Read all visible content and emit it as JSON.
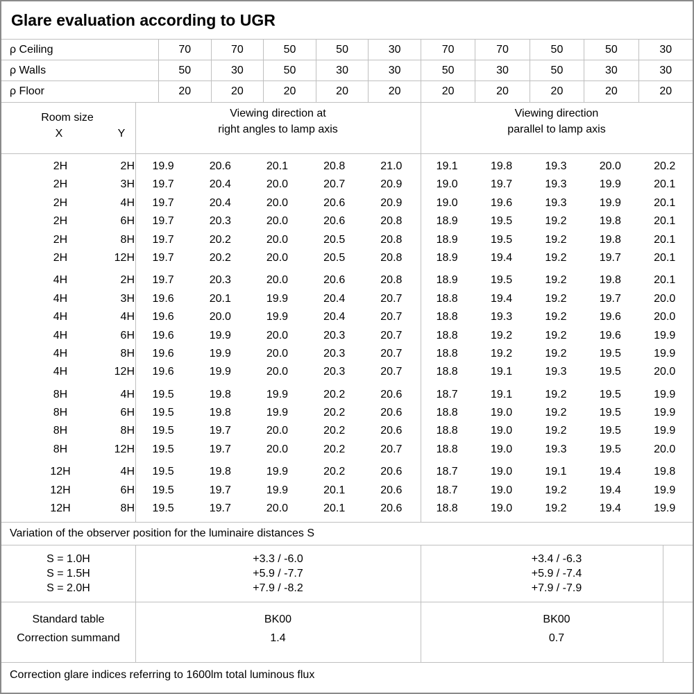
{
  "title": "Glare evaluation according to UGR",
  "reflectance": {
    "ceiling_label": "ρ Ceiling",
    "walls_label": "ρ Walls",
    "floor_label": "ρ Floor",
    "ceiling": [
      "70",
      "70",
      "50",
      "50",
      "30",
      "70",
      "70",
      "50",
      "50",
      "30"
    ],
    "walls": [
      "50",
      "30",
      "50",
      "30",
      "30",
      "50",
      "30",
      "50",
      "30",
      "30"
    ],
    "floor": [
      "20",
      "20",
      "20",
      "20",
      "20",
      "20",
      "20",
      "20",
      "20",
      "20"
    ]
  },
  "header": {
    "room_size_label": "Room size",
    "x_label": "X",
    "y_label": "Y",
    "left_group_line1": "Viewing direction at",
    "left_group_line2": "right angles to lamp axis",
    "right_group_line1": "Viewing direction",
    "right_group_line2": "parallel to lamp axis"
  },
  "blocks": [
    {
      "rows": [
        {
          "x": "2H",
          "y": "2H",
          "right_angle": [
            "19.9",
            "20.6",
            "20.1",
            "20.8",
            "21.0"
          ],
          "parallel": [
            "19.1",
            "19.8",
            "19.3",
            "20.0",
            "20.2"
          ]
        },
        {
          "x": "2H",
          "y": "3H",
          "right_angle": [
            "19.7",
            "20.4",
            "20.0",
            "20.7",
            "20.9"
          ],
          "parallel": [
            "19.0",
            "19.7",
            "19.3",
            "19.9",
            "20.1"
          ]
        },
        {
          "x": "2H",
          "y": "4H",
          "right_angle": [
            "19.7",
            "20.4",
            "20.0",
            "20.6",
            "20.9"
          ],
          "parallel": [
            "19.0",
            "19.6",
            "19.3",
            "19.9",
            "20.1"
          ]
        },
        {
          "x": "2H",
          "y": "6H",
          "right_angle": [
            "19.7",
            "20.3",
            "20.0",
            "20.6",
            "20.8"
          ],
          "parallel": [
            "18.9",
            "19.5",
            "19.2",
            "19.8",
            "20.1"
          ]
        },
        {
          "x": "2H",
          "y": "8H",
          "right_angle": [
            "19.7",
            "20.2",
            "20.0",
            "20.5",
            "20.8"
          ],
          "parallel": [
            "18.9",
            "19.5",
            "19.2",
            "19.8",
            "20.1"
          ]
        },
        {
          "x": "2H",
          "y": "12H",
          "right_angle": [
            "19.7",
            "20.2",
            "20.0",
            "20.5",
            "20.8"
          ],
          "parallel": [
            "18.9",
            "19.4",
            "19.2",
            "19.7",
            "20.1"
          ]
        }
      ]
    },
    {
      "rows": [
        {
          "x": "4H",
          "y": "2H",
          "right_angle": [
            "19.7",
            "20.3",
            "20.0",
            "20.6",
            "20.8"
          ],
          "parallel": [
            "18.9",
            "19.5",
            "19.2",
            "19.8",
            "20.1"
          ]
        },
        {
          "x": "4H",
          "y": "3H",
          "right_angle": [
            "19.6",
            "20.1",
            "19.9",
            "20.4",
            "20.7"
          ],
          "parallel": [
            "18.8",
            "19.4",
            "19.2",
            "19.7",
            "20.0"
          ]
        },
        {
          "x": "4H",
          "y": "4H",
          "right_angle": [
            "19.6",
            "20.0",
            "19.9",
            "20.4",
            "20.7"
          ],
          "parallel": [
            "18.8",
            "19.3",
            "19.2",
            "19.6",
            "20.0"
          ]
        },
        {
          "x": "4H",
          "y": "6H",
          "right_angle": [
            "19.6",
            "19.9",
            "20.0",
            "20.3",
            "20.7"
          ],
          "parallel": [
            "18.8",
            "19.2",
            "19.2",
            "19.6",
            "19.9"
          ]
        },
        {
          "x": "4H",
          "y": "8H",
          "right_angle": [
            "19.6",
            "19.9",
            "20.0",
            "20.3",
            "20.7"
          ],
          "parallel": [
            "18.8",
            "19.2",
            "19.2",
            "19.5",
            "19.9"
          ]
        },
        {
          "x": "4H",
          "y": "12H",
          "right_angle": [
            "19.6",
            "19.9",
            "20.0",
            "20.3",
            "20.7"
          ],
          "parallel": [
            "18.8",
            "19.1",
            "19.3",
            "19.5",
            "20.0"
          ]
        }
      ]
    },
    {
      "rows": [
        {
          "x": "8H",
          "y": "4H",
          "right_angle": [
            "19.5",
            "19.8",
            "19.9",
            "20.2",
            "20.6"
          ],
          "parallel": [
            "18.7",
            "19.1",
            "19.2",
            "19.5",
            "19.9"
          ]
        },
        {
          "x": "8H",
          "y": "6H",
          "right_angle": [
            "19.5",
            "19.8",
            "19.9",
            "20.2",
            "20.6"
          ],
          "parallel": [
            "18.8",
            "19.0",
            "19.2",
            "19.5",
            "19.9"
          ]
        },
        {
          "x": "8H",
          "y": "8H",
          "right_angle": [
            "19.5",
            "19.7",
            "20.0",
            "20.2",
            "20.6"
          ],
          "parallel": [
            "18.8",
            "19.0",
            "19.2",
            "19.5",
            "19.9"
          ]
        },
        {
          "x": "8H",
          "y": "12H",
          "right_angle": [
            "19.5",
            "19.7",
            "20.0",
            "20.2",
            "20.7"
          ],
          "parallel": [
            "18.8",
            "19.0",
            "19.3",
            "19.5",
            "20.0"
          ]
        }
      ]
    },
    {
      "rows": [
        {
          "x": "12H",
          "y": "4H",
          "right_angle": [
            "19.5",
            "19.8",
            "19.9",
            "20.2",
            "20.6"
          ],
          "parallel": [
            "18.7",
            "19.0",
            "19.1",
            "19.4",
            "19.8"
          ]
        },
        {
          "x": "12H",
          "y": "6H",
          "right_angle": [
            "19.5",
            "19.7",
            "19.9",
            "20.1",
            "20.6"
          ],
          "parallel": [
            "18.7",
            "19.0",
            "19.2",
            "19.4",
            "19.9"
          ]
        },
        {
          "x": "12H",
          "y": "8H",
          "right_angle": [
            "19.5",
            "19.7",
            "20.0",
            "20.1",
            "20.6"
          ],
          "parallel": [
            "18.8",
            "19.0",
            "19.2",
            "19.4",
            "19.9"
          ]
        }
      ]
    }
  ],
  "variation_note": "Variation of the observer position for the luminaire distances S",
  "s_rows": [
    {
      "label": "S = 1.0H",
      "right_angle": "+3.3 / -6.0",
      "parallel": "+3.4 / -6.3"
    },
    {
      "label": "S = 1.5H",
      "right_angle": "+5.9 / -7.7",
      "parallel": "+5.9 / -7.4"
    },
    {
      "label": "S = 2.0H",
      "right_angle": "+7.9 / -8.2",
      "parallel": "+7.9 / -7.9"
    }
  ],
  "standard_rows": [
    {
      "label": "Standard table",
      "right_angle": "BK00",
      "parallel": "BK00"
    },
    {
      "label": "Correction summand",
      "right_angle": "1.4",
      "parallel": "0.7"
    }
  ],
  "footer": "Correction glare indices referring to 1600lm total luminous flux",
  "colors": {
    "grid_line": "#bfbfbf",
    "outer_border": "#8a8a8a",
    "text": "#000000",
    "background": "#ffffff"
  }
}
